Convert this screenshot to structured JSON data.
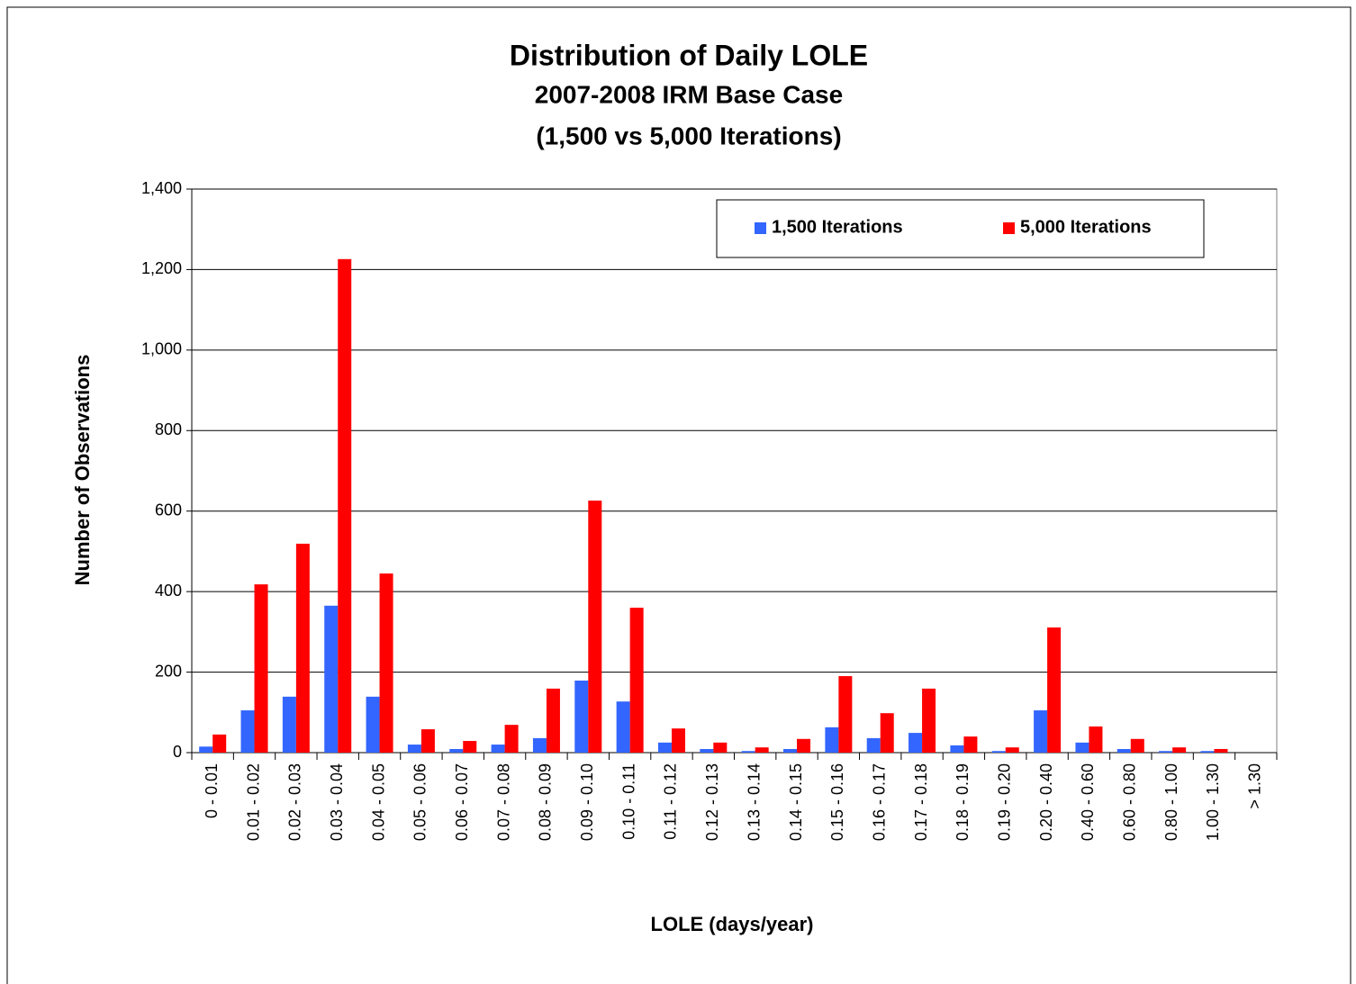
{
  "chart_data": {
    "type": "bar",
    "title": "Distribution of Daily LOLE",
    "subtitle": [
      "2007-2008 IRM Base Case",
      "(1,500 vs 5,000 Iterations)"
    ],
    "x_label": "LOLE (days/year)",
    "y_label": "Number of Observations",
    "categories": [
      "0 - 0.01",
      "0.01 - 0.02",
      "0.02 - 0.03",
      "0.03 - 0.04",
      "0.04 - 0.05",
      "0.05 - 0.06",
      "0.06 - 0.07",
      "0.07 - 0.08",
      "0.08 - 0.09",
      "0.09 - 0.10",
      "0.10 - 0.11",
      "0.11 - 0.12",
      "0.12 - 0.13",
      "0.13 - 0.14",
      "0.14 - 0.15",
      "0.15 - 0.16",
      "0.16 - 0.17",
      "0.17 - 0.18",
      "0.18 - 0.19",
      "0.19 - 0.20",
      "0.20 - 0.40",
      "0.40 - 0.60",
      "0.60 - 0.80",
      "0.80 - 1.00",
      "1.00 - 1.30",
      "> 1.30"
    ],
    "series": [
      {
        "name": "1,500 Iterations",
        "color": "#3366ff",
        "values": [
          15,
          105,
          139,
          365,
          139,
          20,
          9,
          20,
          36,
          179,
          127,
          25,
          9,
          4,
          9,
          63,
          36,
          49,
          18,
          4,
          105,
          25,
          9,
          4,
          4,
          0
        ]
      },
      {
        "name": "5,000 Iterations",
        "color": "#ff0000",
        "values": [
          45,
          418,
          519,
          1226,
          445,
          58,
          29,
          69,
          159,
          626,
          360,
          60,
          25,
          13,
          34,
          190,
          98,
          159,
          40,
          13,
          311,
          65,
          34,
          13,
          9,
          0
        ]
      }
    ],
    "ylim": [
      0,
      1400
    ],
    "yticks": [
      0,
      200,
      400,
      600,
      800,
      {
        "value": 1000,
        "label": "1,000"
      },
      {
        "value": 1200,
        "label": "1,200"
      },
      {
        "value": 1400,
        "label": "1,400"
      }
    ],
    "grid": true,
    "legend": "top-right"
  }
}
